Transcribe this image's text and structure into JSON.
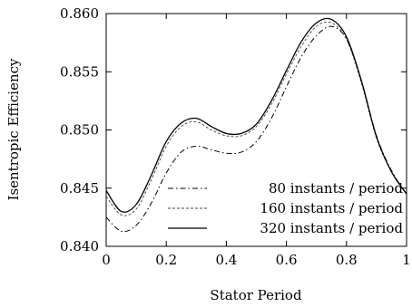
{
  "chart_data": {
    "type": "line",
    "xlabel": "Stator Period",
    "ylabel": "Isentropic Efficiency",
    "xlim": [
      0,
      1
    ],
    "ylim": [
      0.84,
      0.86
    ],
    "xticks": [
      "0",
      "0.2",
      "0.4",
      "0.6",
      "0.8",
      "1"
    ],
    "xtick_values": [
      0,
      0.2,
      0.4,
      0.6,
      0.8,
      1
    ],
    "yticks": [
      "0.840",
      "0.845",
      "0.850",
      "0.855",
      "0.860"
    ],
    "ytick_values": [
      0.84,
      0.845,
      0.85,
      0.855,
      0.86
    ],
    "grid": false,
    "legend_position": "bottom-right",
    "x": [
      0,
      0.05,
      0.1,
      0.15,
      0.2,
      0.25,
      0.3,
      0.35,
      0.4,
      0.45,
      0.5,
      0.55,
      0.6,
      0.65,
      0.7,
      0.75,
      0.8,
      0.85,
      0.9,
      0.95,
      1.0
    ],
    "series": [
      {
        "name": "80 instants / period",
        "dash": "dashdot",
        "values": [
          0.8425,
          0.8413,
          0.8418,
          0.8437,
          0.8463,
          0.8481,
          0.8486,
          0.8483,
          0.848,
          0.8481,
          0.849,
          0.851,
          0.8537,
          0.8563,
          0.8581,
          0.8589,
          0.8578,
          0.8542,
          0.8495,
          0.8465,
          0.8445
        ]
      },
      {
        "name": "160 instants / period",
        "dash": "dashed",
        "values": [
          0.8443,
          0.8427,
          0.8432,
          0.8457,
          0.8486,
          0.8503,
          0.8507,
          0.85,
          0.8495,
          0.8495,
          0.8503,
          0.8522,
          0.8548,
          0.8572,
          0.8589,
          0.8592,
          0.8578,
          0.854,
          0.8493,
          0.8464,
          0.8445
        ]
      },
      {
        "name": "320 instants / period",
        "dash": "solid",
        "values": [
          0.8448,
          0.843,
          0.8436,
          0.8461,
          0.849,
          0.8506,
          0.851,
          0.8503,
          0.8497,
          0.8497,
          0.8505,
          0.8525,
          0.8551,
          0.8576,
          0.8592,
          0.8595,
          0.858,
          0.8542,
          0.8494,
          0.8464,
          0.8445
        ]
      }
    ]
  }
}
